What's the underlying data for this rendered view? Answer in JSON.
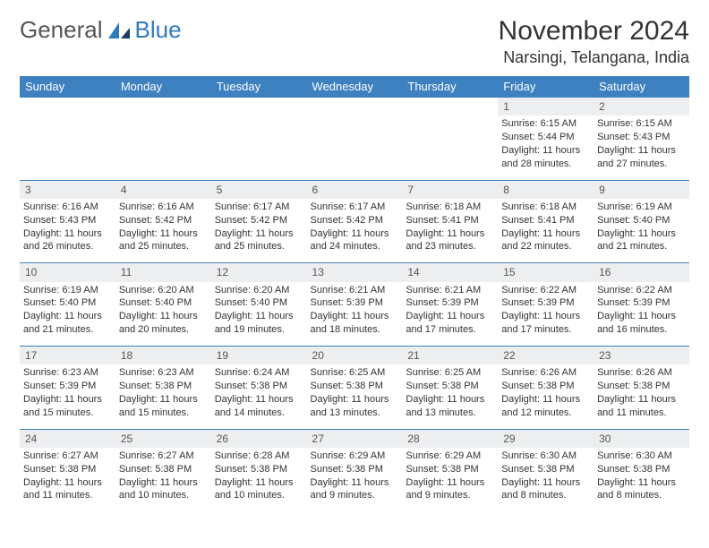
{
  "brand": {
    "part1": "General",
    "part2": "Blue"
  },
  "title": "November 2024",
  "location": "Narsingi, Telangana, India",
  "colors": {
    "header_bg": "#3e81c0",
    "header_text": "#ffffff",
    "daynum_bg": "#eceef0",
    "border": "#3e81c0",
    "brand_gray": "#555555",
    "brand_blue": "#2f7abf",
    "text": "#333333",
    "background": "#ffffff"
  },
  "typography": {
    "title_fontsize": 30,
    "location_fontsize": 18,
    "header_fontsize": 13,
    "daynum_fontsize": 12,
    "cell_fontsize": 11
  },
  "dayHeaders": [
    "Sunday",
    "Monday",
    "Tuesday",
    "Wednesday",
    "Thursday",
    "Friday",
    "Saturday"
  ],
  "weeks": [
    [
      null,
      null,
      null,
      null,
      null,
      {
        "num": "1",
        "sunrise": "Sunrise: 6:15 AM",
        "sunset": "Sunset: 5:44 PM",
        "daylight": "Daylight: 11 hours and 28 minutes."
      },
      {
        "num": "2",
        "sunrise": "Sunrise: 6:15 AM",
        "sunset": "Sunset: 5:43 PM",
        "daylight": "Daylight: 11 hours and 27 minutes."
      }
    ],
    [
      {
        "num": "3",
        "sunrise": "Sunrise: 6:16 AM",
        "sunset": "Sunset: 5:43 PM",
        "daylight": "Daylight: 11 hours and 26 minutes."
      },
      {
        "num": "4",
        "sunrise": "Sunrise: 6:16 AM",
        "sunset": "Sunset: 5:42 PM",
        "daylight": "Daylight: 11 hours and 25 minutes."
      },
      {
        "num": "5",
        "sunrise": "Sunrise: 6:17 AM",
        "sunset": "Sunset: 5:42 PM",
        "daylight": "Daylight: 11 hours and 25 minutes."
      },
      {
        "num": "6",
        "sunrise": "Sunrise: 6:17 AM",
        "sunset": "Sunset: 5:42 PM",
        "daylight": "Daylight: 11 hours and 24 minutes."
      },
      {
        "num": "7",
        "sunrise": "Sunrise: 6:18 AM",
        "sunset": "Sunset: 5:41 PM",
        "daylight": "Daylight: 11 hours and 23 minutes."
      },
      {
        "num": "8",
        "sunrise": "Sunrise: 6:18 AM",
        "sunset": "Sunset: 5:41 PM",
        "daylight": "Daylight: 11 hours and 22 minutes."
      },
      {
        "num": "9",
        "sunrise": "Sunrise: 6:19 AM",
        "sunset": "Sunset: 5:40 PM",
        "daylight": "Daylight: 11 hours and 21 minutes."
      }
    ],
    [
      {
        "num": "10",
        "sunrise": "Sunrise: 6:19 AM",
        "sunset": "Sunset: 5:40 PM",
        "daylight": "Daylight: 11 hours and 21 minutes."
      },
      {
        "num": "11",
        "sunrise": "Sunrise: 6:20 AM",
        "sunset": "Sunset: 5:40 PM",
        "daylight": "Daylight: 11 hours and 20 minutes."
      },
      {
        "num": "12",
        "sunrise": "Sunrise: 6:20 AM",
        "sunset": "Sunset: 5:40 PM",
        "daylight": "Daylight: 11 hours and 19 minutes."
      },
      {
        "num": "13",
        "sunrise": "Sunrise: 6:21 AM",
        "sunset": "Sunset: 5:39 PM",
        "daylight": "Daylight: 11 hours and 18 minutes."
      },
      {
        "num": "14",
        "sunrise": "Sunrise: 6:21 AM",
        "sunset": "Sunset: 5:39 PM",
        "daylight": "Daylight: 11 hours and 17 minutes."
      },
      {
        "num": "15",
        "sunrise": "Sunrise: 6:22 AM",
        "sunset": "Sunset: 5:39 PM",
        "daylight": "Daylight: 11 hours and 17 minutes."
      },
      {
        "num": "16",
        "sunrise": "Sunrise: 6:22 AM",
        "sunset": "Sunset: 5:39 PM",
        "daylight": "Daylight: 11 hours and 16 minutes."
      }
    ],
    [
      {
        "num": "17",
        "sunrise": "Sunrise: 6:23 AM",
        "sunset": "Sunset: 5:39 PM",
        "daylight": "Daylight: 11 hours and 15 minutes."
      },
      {
        "num": "18",
        "sunrise": "Sunrise: 6:23 AM",
        "sunset": "Sunset: 5:38 PM",
        "daylight": "Daylight: 11 hours and 15 minutes."
      },
      {
        "num": "19",
        "sunrise": "Sunrise: 6:24 AM",
        "sunset": "Sunset: 5:38 PM",
        "daylight": "Daylight: 11 hours and 14 minutes."
      },
      {
        "num": "20",
        "sunrise": "Sunrise: 6:25 AM",
        "sunset": "Sunset: 5:38 PM",
        "daylight": "Daylight: 11 hours and 13 minutes."
      },
      {
        "num": "21",
        "sunrise": "Sunrise: 6:25 AM",
        "sunset": "Sunset: 5:38 PM",
        "daylight": "Daylight: 11 hours and 13 minutes."
      },
      {
        "num": "22",
        "sunrise": "Sunrise: 6:26 AM",
        "sunset": "Sunset: 5:38 PM",
        "daylight": "Daylight: 11 hours and 12 minutes."
      },
      {
        "num": "23",
        "sunrise": "Sunrise: 6:26 AM",
        "sunset": "Sunset: 5:38 PM",
        "daylight": "Daylight: 11 hours and 11 minutes."
      }
    ],
    [
      {
        "num": "24",
        "sunrise": "Sunrise: 6:27 AM",
        "sunset": "Sunset: 5:38 PM",
        "daylight": "Daylight: 11 hours and 11 minutes."
      },
      {
        "num": "25",
        "sunrise": "Sunrise: 6:27 AM",
        "sunset": "Sunset: 5:38 PM",
        "daylight": "Daylight: 11 hours and 10 minutes."
      },
      {
        "num": "26",
        "sunrise": "Sunrise: 6:28 AM",
        "sunset": "Sunset: 5:38 PM",
        "daylight": "Daylight: 11 hours and 10 minutes."
      },
      {
        "num": "27",
        "sunrise": "Sunrise: 6:29 AM",
        "sunset": "Sunset: 5:38 PM",
        "daylight": "Daylight: 11 hours and 9 minutes."
      },
      {
        "num": "28",
        "sunrise": "Sunrise: 6:29 AM",
        "sunset": "Sunset: 5:38 PM",
        "daylight": "Daylight: 11 hours and 9 minutes."
      },
      {
        "num": "29",
        "sunrise": "Sunrise: 6:30 AM",
        "sunset": "Sunset: 5:38 PM",
        "daylight": "Daylight: 11 hours and 8 minutes."
      },
      {
        "num": "30",
        "sunrise": "Sunrise: 6:30 AM",
        "sunset": "Sunset: 5:38 PM",
        "daylight": "Daylight: 11 hours and 8 minutes."
      }
    ]
  ]
}
